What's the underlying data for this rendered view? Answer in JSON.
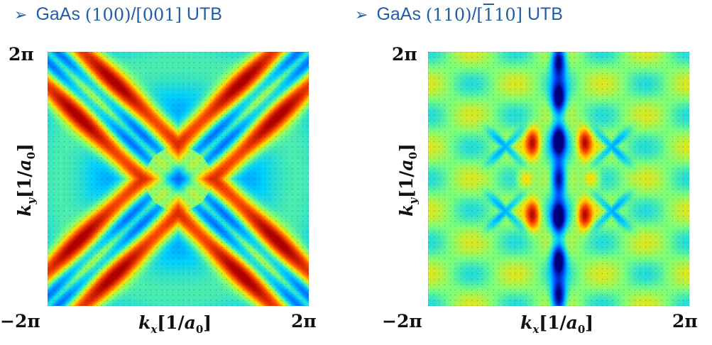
{
  "chart_data": [
    {
      "type": "heatmap",
      "title": "GaAs (100)/[001] UTB",
      "title_parts": {
        "material": "GaAs",
        "plane": "(100)",
        "direction": "[001]",
        "suffix": "UTB"
      },
      "xlabel": "k_x[1/a_0]",
      "ylabel": "k_y[1/a_0]",
      "xlim": [
        "-2π",
        "2π"
      ],
      "ylim": [
        "-2π",
        "2π"
      ],
      "x_tick_labels": [
        "−2π",
        "2π"
      ],
      "y_tick_labels": [
        "2π"
      ],
      "colormap": [
        "#00007f",
        "#0050ff",
        "#00d0ff",
        "#7dff7a",
        "#ffe000",
        "#ff5000",
        "#b00000"
      ],
      "grid_points": 48
    },
    {
      "type": "heatmap",
      "title": "GaAs (110)/[1̄10] UTB",
      "title_parts": {
        "material": "GaAs",
        "plane": "(110)",
        "direction_bar_digit": "1",
        "direction_rest": "10",
        "suffix": "UTB"
      },
      "xlabel": "k_x[1/a_0]",
      "ylabel": "k_y[1/a_0]",
      "xlim": [
        "-2π",
        "2π"
      ],
      "ylim": [
        "-2π",
        "2π"
      ],
      "x_tick_labels": [
        "−2π",
        "2π"
      ],
      "y_tick_labels": [
        "2π"
      ],
      "colormap": [
        "#00007f",
        "#0050ff",
        "#00d0ff",
        "#7dff7a",
        "#ffe000",
        "#ff5000",
        "#b00000"
      ],
      "grid_points": 48
    }
  ],
  "labels": {
    "bullet": "➢",
    "k": "k",
    "x": "x",
    "y": "y",
    "unit_open": "[1/",
    "a": "a",
    "zero": "0",
    "unit_close": "]"
  }
}
